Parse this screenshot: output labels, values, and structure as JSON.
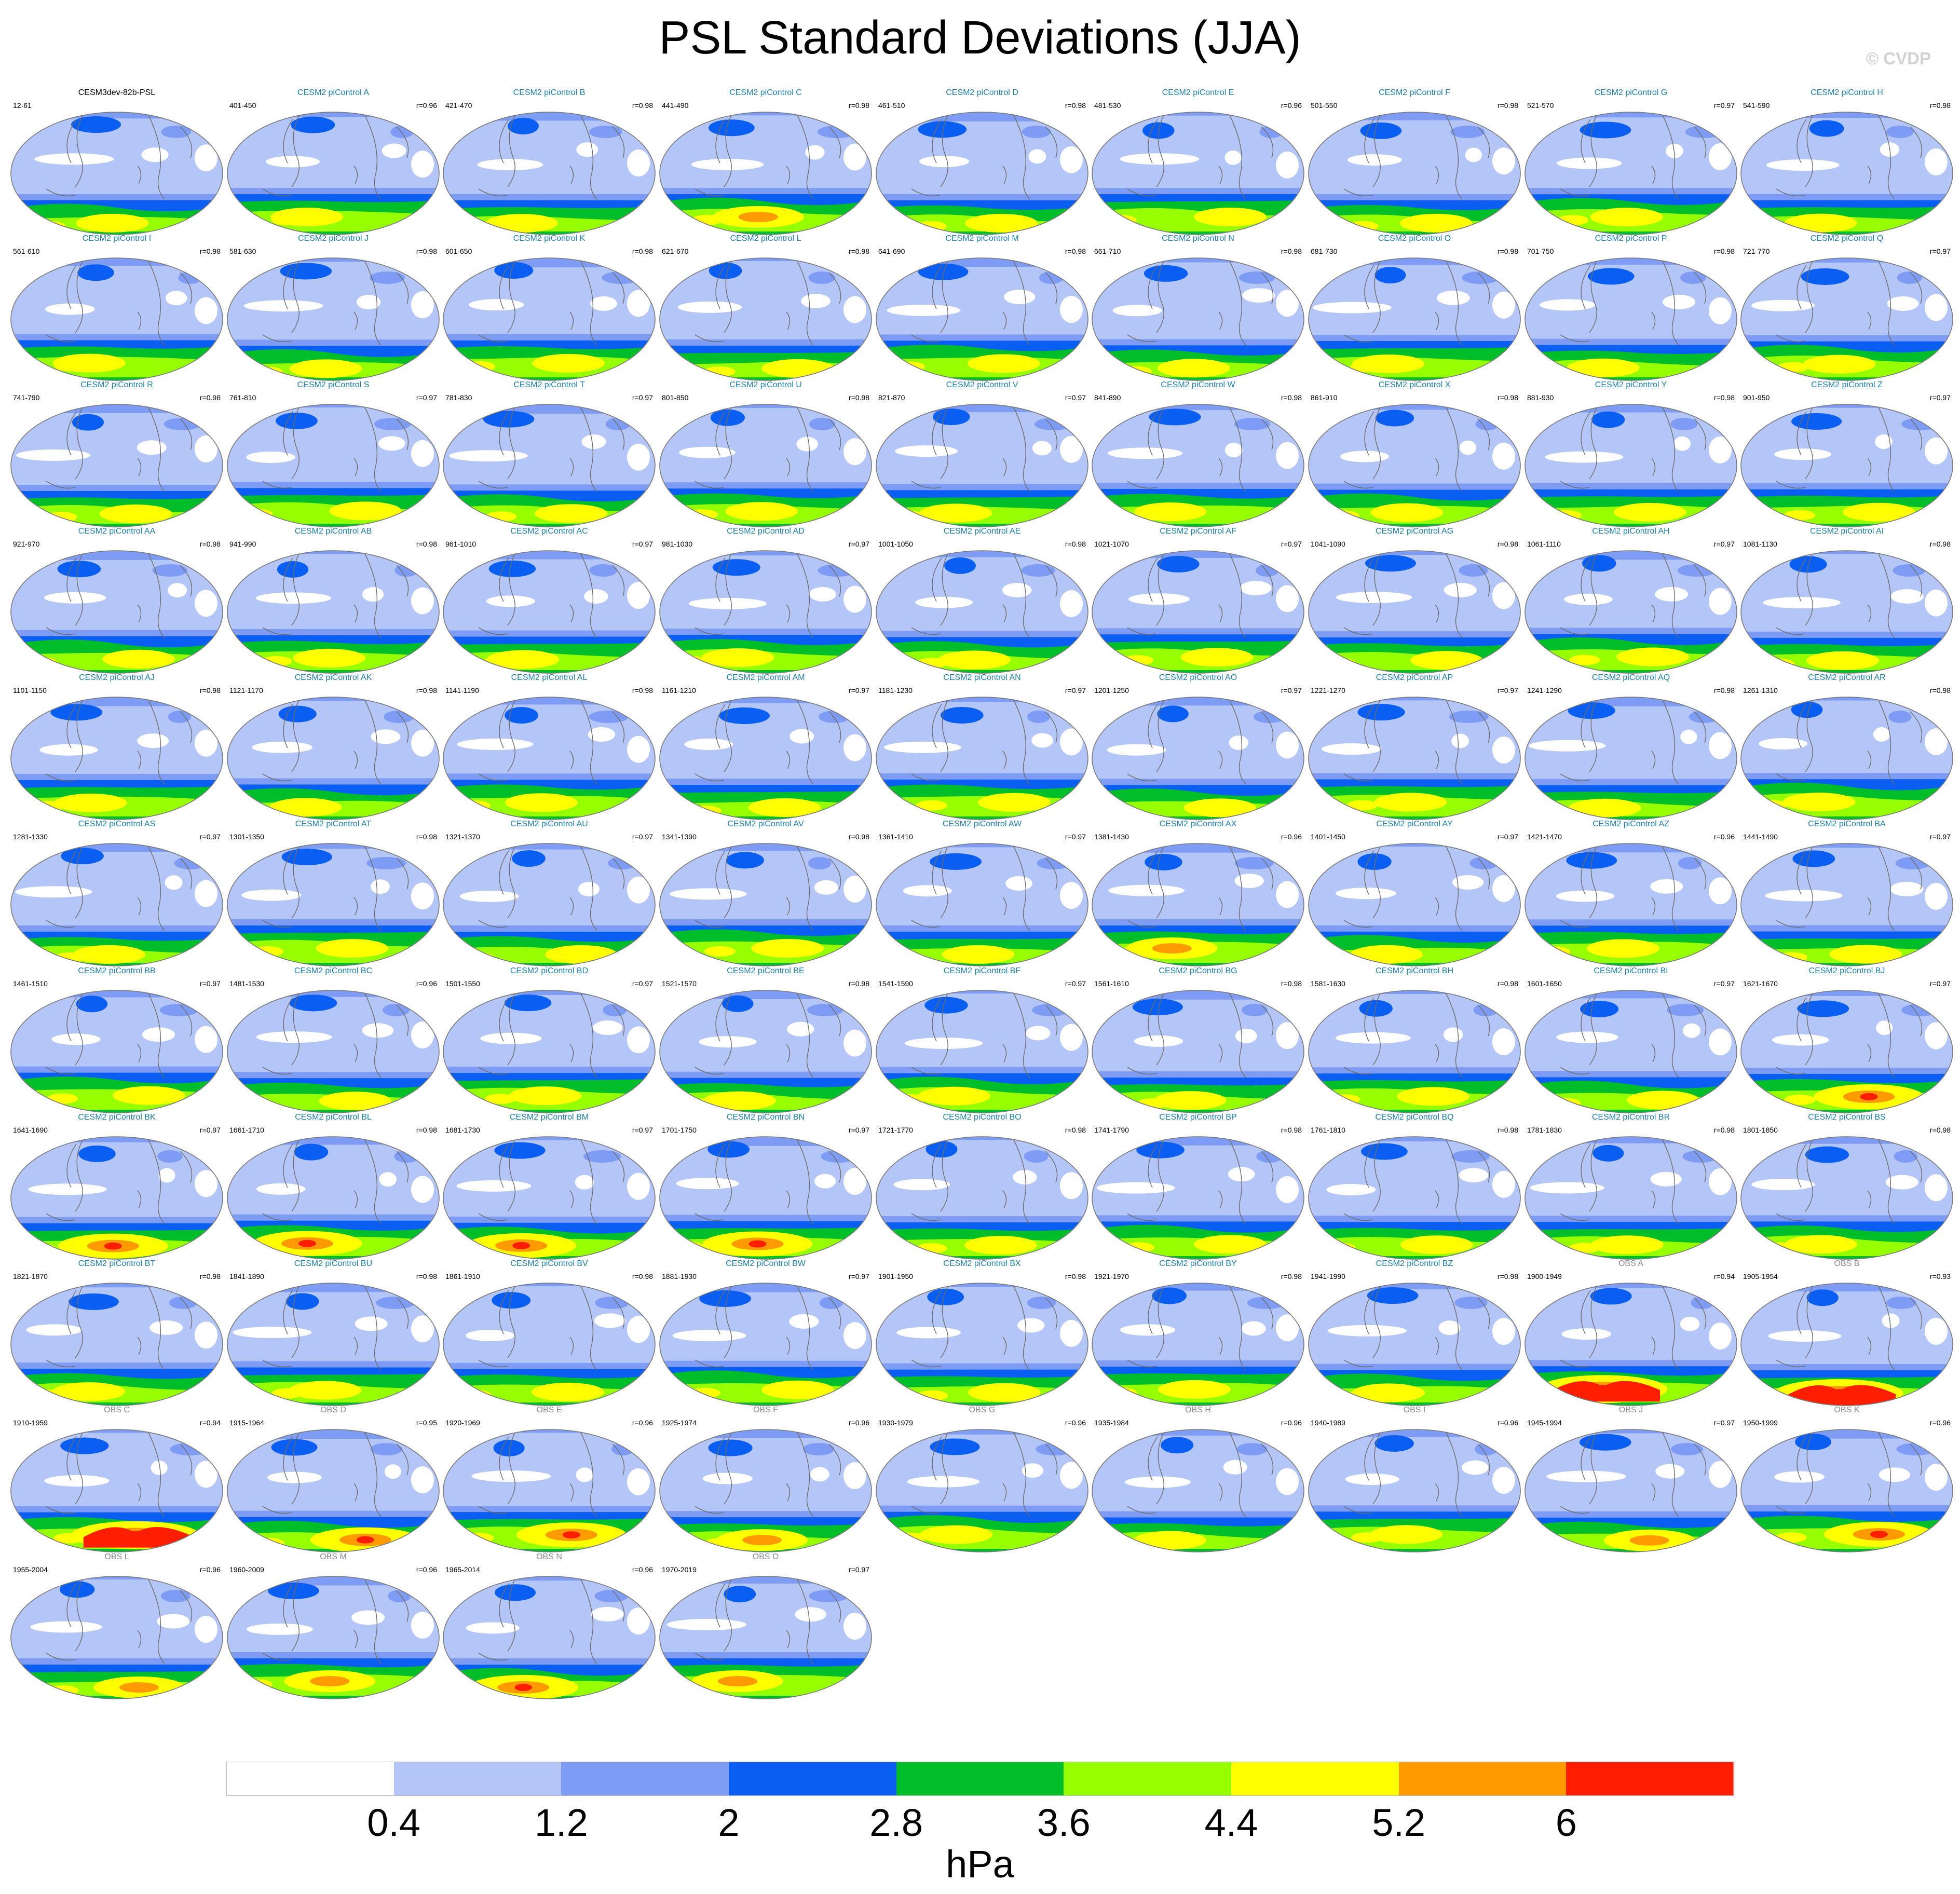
{
  "title": "PSL Standard Deviations (JJA)",
  "credit": "© CVDP",
  "colorbar": {
    "colors": [
      "#ffffff",
      "#b4c5f7",
      "#7f9cf5",
      "#0a5ff2",
      "#00be2a",
      "#96ff00",
      "#ffff00",
      "#ff9b00",
      "#ff1e00"
    ],
    "ticks": [
      "0.4",
      "1.2",
      "2",
      "2.8",
      "3.6",
      "4.4",
      "5.2",
      "6"
    ],
    "unit": "hPa"
  },
  "panels": [
    {
      "name": "CESM3dev-82b-PSL",
      "years": "12-61",
      "r": "",
      "kind": "ref",
      "hot": 0
    },
    {
      "name": "CESM2 piControl A",
      "years": "401-450",
      "r": "r=0.96",
      "kind": "model",
      "hot": 0
    },
    {
      "name": "CESM2 piControl B",
      "years": "421-470",
      "r": "r=0.98",
      "kind": "model",
      "hot": 0
    },
    {
      "name": "CESM2 piControl C",
      "years": "441-490",
      "r": "r=0.98",
      "kind": "model",
      "hot": 1
    },
    {
      "name": "CESM2 piControl D",
      "years": "461-510",
      "r": "r=0.98",
      "kind": "model",
      "hot": 0
    },
    {
      "name": "CESM2 piControl E",
      "years": "481-530",
      "r": "r=0.96",
      "kind": "model",
      "hot": 0
    },
    {
      "name": "CESM2 piControl F",
      "years": "501-550",
      "r": "r=0.98",
      "kind": "model",
      "hot": 0
    },
    {
      "name": "CESM2 piControl G",
      "years": "521-570",
      "r": "r=0.97",
      "kind": "model",
      "hot": 0
    },
    {
      "name": "CESM2 piControl H",
      "years": "541-590",
      "r": "r=0.98",
      "kind": "model",
      "hot": 0
    },
    {
      "name": "CESM2 piControl I",
      "years": "561-610",
      "r": "r=0.98",
      "kind": "model",
      "hot": 0
    },
    {
      "name": "CESM2 piControl J",
      "years": "581-630",
      "r": "r=0.98",
      "kind": "model",
      "hot": 0
    },
    {
      "name": "CESM2 piControl K",
      "years": "601-650",
      "r": "r=0.98",
      "kind": "model",
      "hot": 0
    },
    {
      "name": "CESM2 piControl L",
      "years": "621-670",
      "r": "r=0.98",
      "kind": "model",
      "hot": 0
    },
    {
      "name": "CESM2 piControl M",
      "years": "641-690",
      "r": "r=0.98",
      "kind": "model",
      "hot": 0
    },
    {
      "name": "CESM2 piControl N",
      "years": "661-710",
      "r": "r=0.98",
      "kind": "model",
      "hot": 0
    },
    {
      "name": "CESM2 piControl O",
      "years": "681-730",
      "r": "r=0.98",
      "kind": "model",
      "hot": 0
    },
    {
      "name": "CESM2 piControl P",
      "years": "701-750",
      "r": "r=0.98",
      "kind": "model",
      "hot": 0
    },
    {
      "name": "CESM2 piControl Q",
      "years": "721-770",
      "r": "r=0.97",
      "kind": "model",
      "hot": 0
    },
    {
      "name": "CESM2 piControl R",
      "years": "741-790",
      "r": "r=0.98",
      "kind": "model",
      "hot": 0
    },
    {
      "name": "CESM2 piControl S",
      "years": "761-810",
      "r": "r=0.97",
      "kind": "model",
      "hot": 0
    },
    {
      "name": "CESM2 piControl T",
      "years": "781-830",
      "r": "r=0.97",
      "kind": "model",
      "hot": 0
    },
    {
      "name": "CESM2 piControl U",
      "years": "801-850",
      "r": "r=0.98",
      "kind": "model",
      "hot": 0
    },
    {
      "name": "CESM2 piControl V",
      "years": "821-870",
      "r": "r=0.97",
      "kind": "model",
      "hot": 0
    },
    {
      "name": "CESM2 piControl W",
      "years": "841-890",
      "r": "r=0.98",
      "kind": "model",
      "hot": 0
    },
    {
      "name": "CESM2 piControl X",
      "years": "861-910",
      "r": "r=0.98",
      "kind": "model",
      "hot": 0
    },
    {
      "name": "CESM2 piControl Y",
      "years": "881-930",
      "r": "r=0.98",
      "kind": "model",
      "hot": 0
    },
    {
      "name": "CESM2 piControl Z",
      "years": "901-950",
      "r": "r=0.97",
      "kind": "model",
      "hot": 0
    },
    {
      "name": "CESM2 piControl AA",
      "years": "921-970",
      "r": "r=0.98",
      "kind": "model",
      "hot": 0
    },
    {
      "name": "CESM2 piControl AB",
      "years": "941-990",
      "r": "r=0.98",
      "kind": "model",
      "hot": 0
    },
    {
      "name": "CESM2 piControl AC",
      "years": "961-1010",
      "r": "r=0.97",
      "kind": "model",
      "hot": 0
    },
    {
      "name": "CESM2 piControl AD",
      "years": "981-1030",
      "r": "r=0.97",
      "kind": "model",
      "hot": 0
    },
    {
      "name": "CESM2 piControl AE",
      "years": "1001-1050",
      "r": "r=0.98",
      "kind": "model",
      "hot": 0
    },
    {
      "name": "CESM2 piControl AF",
      "years": "1021-1070",
      "r": "r=0.97",
      "kind": "model",
      "hot": 0
    },
    {
      "name": "CESM2 piControl AG",
      "years": "1041-1090",
      "r": "r=0.98",
      "kind": "model",
      "hot": 0
    },
    {
      "name": "CESM2 piControl AH",
      "years": "1061-1110",
      "r": "r=0.97",
      "kind": "model",
      "hot": 0
    },
    {
      "name": "CESM2 piControl AI",
      "years": "1081-1130",
      "r": "r=0.98",
      "kind": "model",
      "hot": 0
    },
    {
      "name": "CESM2 piControl AJ",
      "years": "1101-1150",
      "r": "r=0.98",
      "kind": "model",
      "hot": 0
    },
    {
      "name": "CESM2 piControl AK",
      "years": "1121-1170",
      "r": "r=0.98",
      "kind": "model",
      "hot": 0
    },
    {
      "name": "CESM2 piControl AL",
      "years": "1141-1190",
      "r": "r=0.98",
      "kind": "model",
      "hot": 0
    },
    {
      "name": "CESM2 piControl AM",
      "years": "1161-1210",
      "r": "r=0.97",
      "kind": "model",
      "hot": 0
    },
    {
      "name": "CESM2 piControl AN",
      "years": "1181-1230",
      "r": "r=0.97",
      "kind": "model",
      "hot": 0
    },
    {
      "name": "CESM2 piControl AO",
      "years": "1201-1250",
      "r": "r=0.97",
      "kind": "model",
      "hot": 0
    },
    {
      "name": "CESM2 piControl AP",
      "years": "1221-1270",
      "r": "r=0.97",
      "kind": "model",
      "hot": 0
    },
    {
      "name": "CESM2 piControl AQ",
      "years": "1241-1290",
      "r": "r=0.98",
      "kind": "model",
      "hot": 0
    },
    {
      "name": "CESM2 piControl AR",
      "years": "1261-1310",
      "r": "r=0.98",
      "kind": "model",
      "hot": 0
    },
    {
      "name": "CESM2 piControl AS",
      "years": "1281-1330",
      "r": "r=0.97",
      "kind": "model",
      "hot": 0
    },
    {
      "name": "CESM2 piControl AT",
      "years": "1301-1350",
      "r": "r=0.98",
      "kind": "model",
      "hot": 0
    },
    {
      "name": "CESM2 piControl AU",
      "years": "1321-1370",
      "r": "r=0.97",
      "kind": "model",
      "hot": 0
    },
    {
      "name": "CESM2 piControl AV",
      "years": "1341-1390",
      "r": "r=0.98",
      "kind": "model",
      "hot": 0
    },
    {
      "name": "CESM2 piControl AW",
      "years": "1361-1410",
      "r": "r=0.97",
      "kind": "model",
      "hot": 0
    },
    {
      "name": "CESM2 piControl AX",
      "years": "1381-1430",
      "r": "r=0.96",
      "kind": "model",
      "hot": 1
    },
    {
      "name": "CESM2 piControl AY",
      "years": "1401-1450",
      "r": "r=0.97",
      "kind": "model",
      "hot": 0
    },
    {
      "name": "CESM2 piControl AZ",
      "years": "1421-1470",
      "r": "r=0.96",
      "kind": "model",
      "hot": 0
    },
    {
      "name": "CESM2 piControl BA",
      "years": "1441-1490",
      "r": "r=0.97",
      "kind": "model",
      "hot": 0
    },
    {
      "name": "CESM2 piControl BB",
      "years": "1461-1510",
      "r": "r=0.97",
      "kind": "model",
      "hot": 0
    },
    {
      "name": "CESM2 piControl BC",
      "years": "1481-1530",
      "r": "r=0.96",
      "kind": "model",
      "hot": 0
    },
    {
      "name": "CESM2 piControl BD",
      "years": "1501-1550",
      "r": "r=0.97",
      "kind": "model",
      "hot": 0
    },
    {
      "name": "CESM2 piControl BE",
      "years": "1521-1570",
      "r": "r=0.98",
      "kind": "model",
      "hot": 0
    },
    {
      "name": "CESM2 piControl BF",
      "years": "1541-1590",
      "r": "r=0.97",
      "kind": "model",
      "hot": 0
    },
    {
      "name": "CESM2 piControl BG",
      "years": "1561-1610",
      "r": "r=0.98",
      "kind": "model",
      "hot": 0
    },
    {
      "name": "CESM2 piControl BH",
      "years": "1581-1630",
      "r": "r=0.98",
      "kind": "model",
      "hot": 0
    },
    {
      "name": "CESM2 piControl BI",
      "years": "1601-1650",
      "r": "r=0.97",
      "kind": "model",
      "hot": 0
    },
    {
      "name": "CESM2 piControl BJ",
      "years": "1621-1670",
      "r": "r=0.97",
      "kind": "model",
      "hot": 2
    },
    {
      "name": "CESM2 piControl BK",
      "years": "1641-1690",
      "r": "r=0.97",
      "kind": "model",
      "hot": 2
    },
    {
      "name": "CESM2 piControl BL",
      "years": "1661-1710",
      "r": "r=0.98",
      "kind": "model",
      "hot": 2
    },
    {
      "name": "CESM2 piControl BM",
      "years": "1681-1730",
      "r": "r=0.97",
      "kind": "model",
      "hot": 2
    },
    {
      "name": "CESM2 piControl BN",
      "years": "1701-1750",
      "r": "r=0.97",
      "kind": "model",
      "hot": 2
    },
    {
      "name": "CESM2 piControl BO",
      "years": "1721-1770",
      "r": "r=0.98",
      "kind": "model",
      "hot": 0
    },
    {
      "name": "CESM2 piControl BP",
      "years": "1741-1790",
      "r": "r=0.98",
      "kind": "model",
      "hot": 0
    },
    {
      "name": "CESM2 piControl BQ",
      "years": "1761-1810",
      "r": "r=0.98",
      "kind": "model",
      "hot": 0
    },
    {
      "name": "CESM2 piControl BR",
      "years": "1781-1830",
      "r": "r=0.98",
      "kind": "model",
      "hot": 0
    },
    {
      "name": "CESM2 piControl BS",
      "years": "1801-1850",
      "r": "r=0.98",
      "kind": "model",
      "hot": 0
    },
    {
      "name": "CESM2 piControl BT",
      "years": "1821-1870",
      "r": "r=0.98",
      "kind": "model",
      "hot": 0
    },
    {
      "name": "CESM2 piControl BU",
      "years": "1841-1890",
      "r": "r=0.98",
      "kind": "model",
      "hot": 0
    },
    {
      "name": "CESM2 piControl BV",
      "years": "1861-1910",
      "r": "r=0.98",
      "kind": "model",
      "hot": 0
    },
    {
      "name": "CESM2 piControl BW",
      "years": "1881-1930",
      "r": "r=0.97",
      "kind": "model",
      "hot": 0
    },
    {
      "name": "CESM2 piControl BX",
      "years": "1901-1950",
      "r": "r=0.98",
      "kind": "model",
      "hot": 0
    },
    {
      "name": "CESM2 piControl BY",
      "years": "1921-1970",
      "r": "r=0.98",
      "kind": "model",
      "hot": 0
    },
    {
      "name": "CESM2 piControl BZ",
      "years": "1941-1990",
      "r": "r=0.98",
      "kind": "model",
      "hot": 0
    },
    {
      "name": "OBS A",
      "years": "1900-1949",
      "r": "r=0.94",
      "kind": "obs",
      "hot": 3
    },
    {
      "name": "OBS B",
      "years": "1905-1954",
      "r": "r=0.93",
      "kind": "obs",
      "hot": 3
    },
    {
      "name": "OBS C",
      "years": "1910-1959",
      "r": "r=0.94",
      "kind": "obs",
      "hot": 3
    },
    {
      "name": "OBS D",
      "years": "1915-1964",
      "r": "r=0.95",
      "kind": "obs",
      "hot": 2
    },
    {
      "name": "OBS E",
      "years": "1920-1969",
      "r": "r=0.96",
      "kind": "obs",
      "hot": 2
    },
    {
      "name": "OBS F",
      "years": "1925-1974",
      "r": "r=0.96",
      "kind": "obs",
      "hot": 1
    },
    {
      "name": "OBS G",
      "years": "1930-1979",
      "r": "r=0.96",
      "kind": "obs",
      "hot": 0
    },
    {
      "name": "OBS H",
      "years": "1935-1984",
      "r": "r=0.96",
      "kind": "obs",
      "hot": 0
    },
    {
      "name": "OBS I",
      "years": "1940-1989",
      "r": "r=0.96",
      "kind": "obs",
      "hot": 0
    },
    {
      "name": "OBS J",
      "years": "1945-1994",
      "r": "r=0.97",
      "kind": "obs",
      "hot": 1
    },
    {
      "name": "OBS K",
      "years": "1950-1999",
      "r": "r=0.96",
      "kind": "obs",
      "hot": 2
    },
    {
      "name": "OBS L",
      "years": "1955-2004",
      "r": "r=0.96",
      "kind": "obs",
      "hot": 1
    },
    {
      "name": "OBS M",
      "years": "1960-2009",
      "r": "r=0.96",
      "kind": "obs",
      "hot": 1
    },
    {
      "name": "OBS N",
      "years": "1965-2014",
      "r": "r=0.96",
      "kind": "obs",
      "hot": 2
    },
    {
      "name": "OBS O",
      "years": "1970-2019",
      "r": "r=0.97",
      "kind": "obs",
      "hot": 1
    }
  ]
}
